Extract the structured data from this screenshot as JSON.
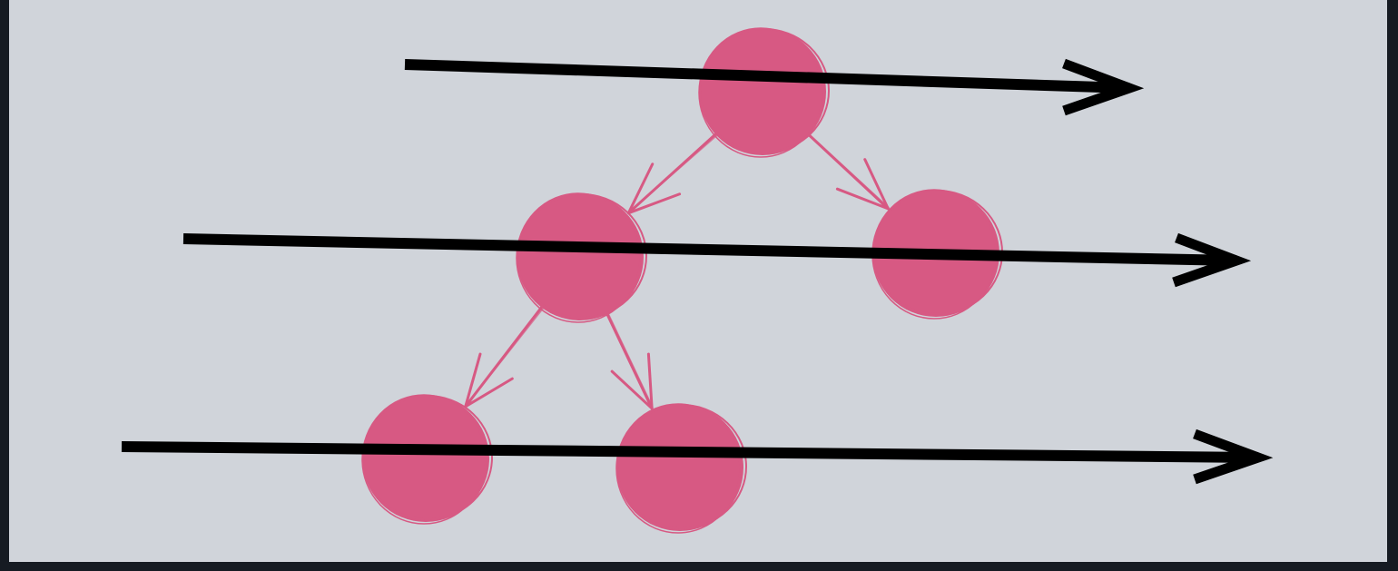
{
  "diagram": {
    "type": "binary-tree-level-order-traversal",
    "colors": {
      "frame": "#161b22",
      "canvas": "#d0d4da",
      "node": "#d75983",
      "edge": "#d75983",
      "level_arrow": "#000000"
    },
    "nodes": [
      {
        "id": "root",
        "level": 0
      },
      {
        "id": "left",
        "level": 1
      },
      {
        "id": "right",
        "level": 1
      },
      {
        "id": "left-left",
        "level": 2
      },
      {
        "id": "left-right",
        "level": 2
      }
    ],
    "edges": [
      {
        "from": "root",
        "to": "left"
      },
      {
        "from": "root",
        "to": "right"
      },
      {
        "from": "left",
        "to": "left-left"
      },
      {
        "from": "left",
        "to": "left-right"
      }
    ],
    "level_arrows": [
      {
        "level": 0,
        "direction": "left-to-right"
      },
      {
        "level": 1,
        "direction": "left-to-right"
      },
      {
        "level": 2,
        "direction": "left-to-right"
      }
    ]
  }
}
